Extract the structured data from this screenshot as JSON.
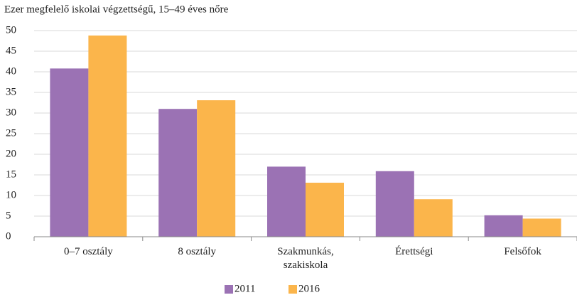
{
  "chart_data": {
    "type": "bar",
    "title": "Ezer megfelelő iskolai végzettségű, 15–49 éves nőre",
    "categories": [
      "0–7 osztály",
      "8 osztály",
      "Szakmunkás, szakiskola",
      "Érettségi",
      "Felsőfok"
    ],
    "series": [
      {
        "name": "2011",
        "color": "#9b72b4",
        "values": [
          40.8,
          31,
          17,
          15.9,
          5.2
        ]
      },
      {
        "name": "2016",
        "color": "#fbb54b",
        "values": [
          48.8,
          33.1,
          13.1,
          9.1,
          4.4
        ]
      }
    ],
    "ylim": [
      0,
      50
    ],
    "yticks": [
      0,
      5,
      10,
      15,
      20,
      25,
      30,
      35,
      40,
      45,
      50
    ],
    "grid": true,
    "legend": "bottom"
  }
}
